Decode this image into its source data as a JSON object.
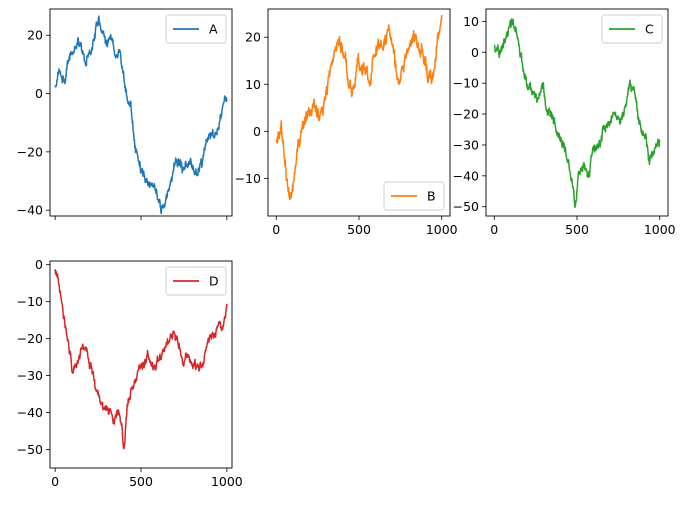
{
  "chart_data": [
    {
      "type": "line",
      "series": [
        {
          "name": "A",
          "color": "#1f77b4"
        }
      ],
      "xlim": [
        -30,
        1030
      ],
      "ylim": [
        -42,
        29
      ],
      "yticks": [
        20,
        0,
        -20,
        -40
      ],
      "ytick_labels": [
        "20",
        "0",
        "−20",
        "−40"
      ],
      "xticks": [
        0,
        500,
        1000
      ],
      "xtick_labels": [],
      "legend": "top-right",
      "grid": false,
      "keypoints": [
        [
          0,
          2
        ],
        [
          30,
          6
        ],
        [
          60,
          3
        ],
        [
          90,
          12
        ],
        [
          120,
          15
        ],
        [
          150,
          17
        ],
        [
          180,
          10
        ],
        [
          210,
          14
        ],
        [
          250,
          25
        ],
        [
          290,
          17
        ],
        [
          340,
          15
        ],
        [
          380,
          16
        ],
        [
          410,
          2
        ],
        [
          440,
          -5
        ],
        [
          470,
          -20
        ],
        [
          500,
          -27
        ],
        [
          540,
          -30
        ],
        [
          580,
          -32
        ],
        [
          620,
          -38
        ],
        [
          660,
          -33
        ],
        [
          700,
          -24
        ],
        [
          740,
          -26
        ],
        [
          780,
          -22
        ],
        [
          820,
          -27
        ],
        [
          860,
          -22
        ],
        [
          900,
          -14
        ],
        [
          940,
          -12
        ],
        [
          970,
          -8
        ],
        [
          1000,
          -4
        ]
      ],
      "noise": 2.2
    },
    {
      "type": "line",
      "series": [
        {
          "name": "B",
          "color": "#ff7f0e"
        }
      ],
      "xlim": [
        -50,
        1050
      ],
      "ylim": [
        -18,
        26
      ],
      "yticks": [
        20,
        10,
        0,
        -10
      ],
      "ytick_labels": [
        "20",
        "10",
        "0",
        "−10"
      ],
      "xticks": [
        0,
        500,
        1000
      ],
      "xtick_labels": [
        "0",
        "500",
        "1000"
      ],
      "legend": "bottom-right",
      "grid": false,
      "keypoints": [
        [
          0,
          -1
        ],
        [
          30,
          1
        ],
        [
          50,
          -7
        ],
        [
          70,
          -12
        ],
        [
          90,
          -15
        ],
        [
          110,
          -10
        ],
        [
          130,
          -3
        ],
        [
          150,
          1
        ],
        [
          180,
          6
        ],
        [
          200,
          4
        ],
        [
          230,
          8
        ],
        [
          260,
          3
        ],
        [
          290,
          6
        ],
        [
          310,
          10
        ],
        [
          340,
          16
        ],
        [
          370,
          20
        ],
        [
          400,
          18
        ],
        [
          430,
          12
        ],
        [
          460,
          8
        ],
        [
          490,
          14
        ],
        [
          530,
          15
        ],
        [
          560,
          12
        ],
        [
          590,
          16
        ],
        [
          620,
          19
        ],
        [
          650,
          17
        ],
        [
          680,
          21
        ],
        [
          710,
          16
        ],
        [
          740,
          9
        ],
        [
          770,
          12
        ],
        [
          800,
          17
        ],
        [
          830,
          21
        ],
        [
          860,
          19
        ],
        [
          890,
          16
        ],
        [
          920,
          12
        ],
        [
          950,
          14
        ],
        [
          980,
          19
        ],
        [
          1000,
          23
        ]
      ],
      "noise": 1.8
    },
    {
      "type": "line",
      "series": [
        {
          "name": "C",
          "color": "#2ca02c"
        }
      ],
      "xlim": [
        -50,
        1050
      ],
      "ylim": [
        -53,
        14
      ],
      "yticks": [
        10,
        0,
        -10,
        -20,
        -30,
        -40,
        -50
      ],
      "ytick_labels": [
        "10",
        "0",
        "−10",
        "−20",
        "−30",
        "−40",
        "−50"
      ],
      "xticks": [
        0,
        500,
        1000
      ],
      "xtick_labels": [
        "0",
        "500",
        "1000"
      ],
      "legend": "top-right",
      "grid": false,
      "keypoints": [
        [
          0,
          2
        ],
        [
          30,
          -1
        ],
        [
          60,
          4
        ],
        [
          90,
          8
        ],
        [
          110,
          10
        ],
        [
          140,
          5
        ],
        [
          170,
          -4
        ],
        [
          200,
          -10
        ],
        [
          230,
          -14
        ],
        [
          260,
          -16
        ],
        [
          290,
          -12
        ],
        [
          320,
          -18
        ],
        [
          350,
          -20
        ],
        [
          380,
          -25
        ],
        [
          410,
          -30
        ],
        [
          440,
          -35
        ],
        [
          470,
          -42
        ],
        [
          490,
          -48
        ],
        [
          510,
          -40
        ],
        [
          540,
          -36
        ],
        [
          570,
          -38
        ],
        [
          600,
          -33
        ],
        [
          630,
          -30
        ],
        [
          660,
          -25
        ],
        [
          690,
          -22
        ],
        [
          720,
          -18
        ],
        [
          760,
          -20
        ],
        [
          800,
          -15
        ],
        [
          820,
          -10
        ],
        [
          850,
          -15
        ],
        [
          880,
          -22
        ],
        [
          910,
          -26
        ],
        [
          940,
          -34
        ],
        [
          970,
          -30
        ],
        [
          1000,
          -28
        ]
      ],
      "noise": 2.0
    },
    {
      "type": "line",
      "series": [
        {
          "name": "D",
          "color": "#d62728"
        }
      ],
      "xlim": [
        -30,
        1030
      ],
      "ylim": [
        -55,
        1
      ],
      "yticks": [
        0,
        -10,
        -20,
        -30,
        -40,
        -50
      ],
      "ytick_labels": [
        "0",
        "−10",
        "−20",
        "−30",
        "−40",
        "−50"
      ],
      "xticks": [
        0,
        500,
        1000
      ],
      "xtick_labels": [
        "0",
        "500",
        "1000"
      ],
      "legend": "top-right",
      "grid": false,
      "keypoints": [
        [
          0,
          -2
        ],
        [
          30,
          -8
        ],
        [
          60,
          -15
        ],
        [
          80,
          -22
        ],
        [
          100,
          -28
        ],
        [
          130,
          -26
        ],
        [
          160,
          -22
        ],
        [
          190,
          -25
        ],
        [
          220,
          -30
        ],
        [
          250,
          -35
        ],
        [
          280,
          -40
        ],
        [
          310,
          -38
        ],
        [
          340,
          -42
        ],
        [
          370,
          -40
        ],
        [
          390,
          -45
        ],
        [
          400,
          -51
        ],
        [
          420,
          -40
        ],
        [
          450,
          -34
        ],
        [
          480,
          -30
        ],
        [
          510,
          -27
        ],
        [
          540,
          -24
        ],
        [
          570,
          -27
        ],
        [
          600,
          -26
        ],
        [
          630,
          -24
        ],
        [
          660,
          -22
        ],
        [
          690,
          -18
        ],
        [
          720,
          -22
        ],
        [
          750,
          -24
        ],
        [
          780,
          -25
        ],
        [
          810,
          -27
        ],
        [
          840,
          -26
        ],
        [
          870,
          -24
        ],
        [
          900,
          -20
        ],
        [
          940,
          -17
        ],
        [
          970,
          -16
        ],
        [
          1000,
          -10
        ]
      ],
      "noise": 1.6
    }
  ]
}
